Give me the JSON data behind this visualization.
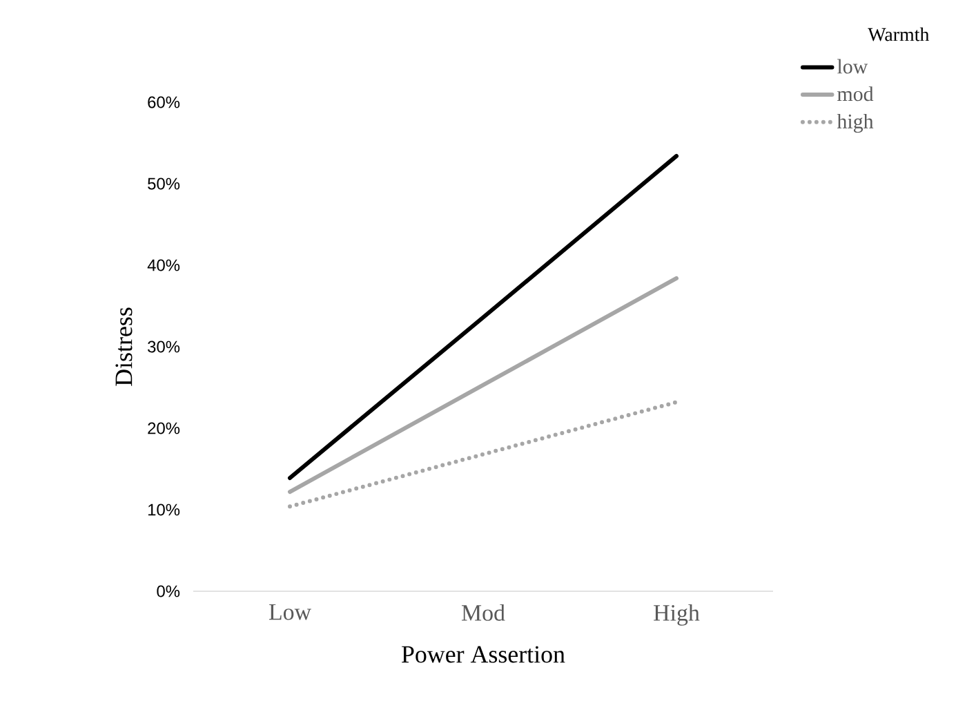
{
  "chart_data": {
    "type": "line",
    "xlabel": "Power Assertion",
    "ylabel": "Distress",
    "legend_title": "Warmth",
    "categories": [
      "Low",
      "Mod",
      "High"
    ],
    "series": [
      {
        "name": "low",
        "color": "#000000",
        "line_style": "solid",
        "values": [
          13.9,
          33.6,
          53.4
        ]
      },
      {
        "name": "mod",
        "color": "#a6a6a6",
        "line_style": "solid",
        "values": [
          12.2,
          25.3,
          38.4
        ]
      },
      {
        "name": "high",
        "color": "#a6a6a6",
        "line_style": "dotted",
        "values": [
          10.4,
          16.8,
          23.2
        ]
      }
    ],
    "ylim": [
      0,
      60
    ],
    "yticks": [
      {
        "value": 0,
        "label": "0%"
      },
      {
        "value": 10,
        "label": "10%"
      },
      {
        "value": 20,
        "label": "20%"
      },
      {
        "value": 30,
        "label": "30%"
      },
      {
        "value": 40,
        "label": "40%"
      },
      {
        "value": 50,
        "label": "50%"
      },
      {
        "value": 60,
        "label": "60%"
      }
    ],
    "grid": false,
    "legend": "top right",
    "marker": "none"
  }
}
